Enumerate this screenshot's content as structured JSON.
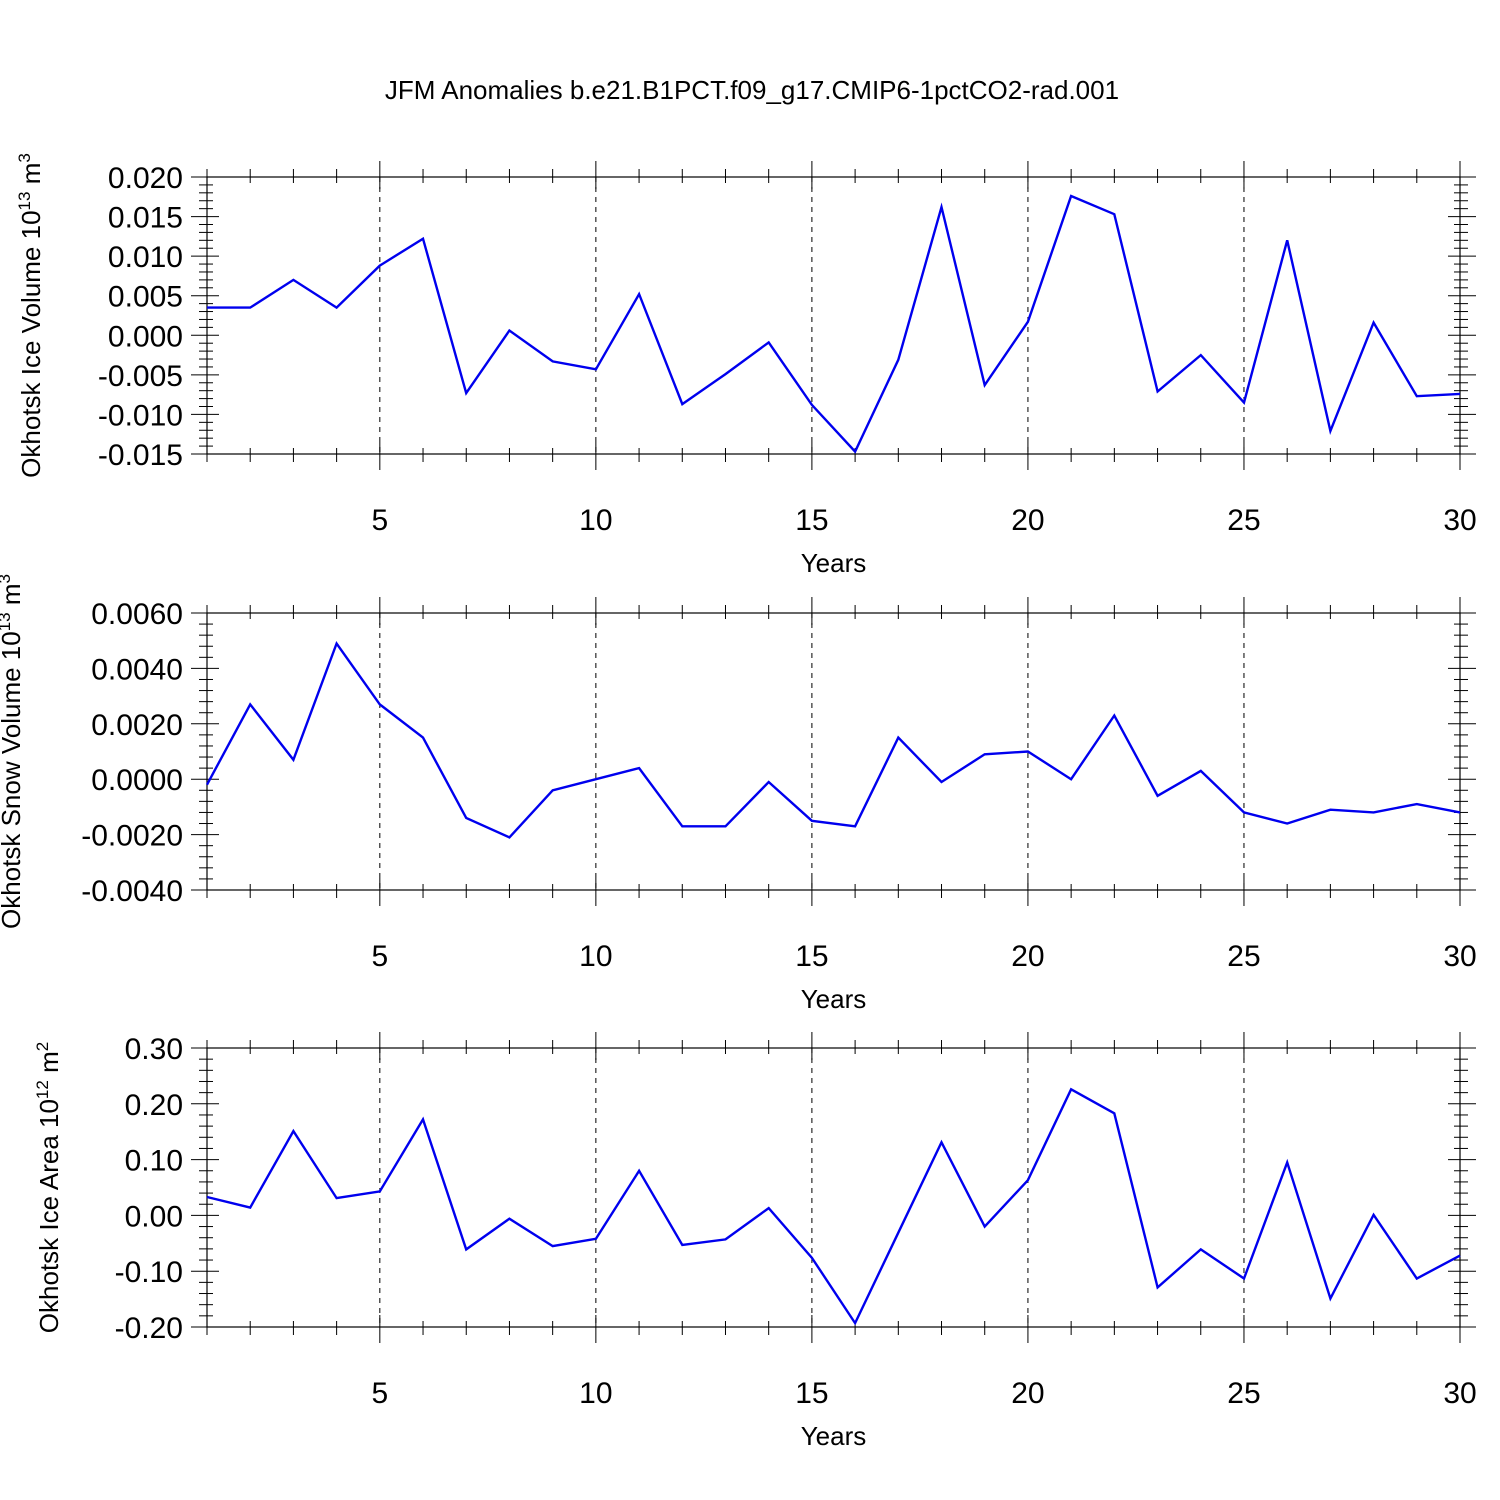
{
  "figure": {
    "title": "JFM Anomalies b.e21.B1PCT.f09_g17.CMIP6-1pctCO2-rad.001"
  },
  "chart_data": [
    {
      "type": "line",
      "title": "JFM Anomalies b.e21.B1PCT.f09_g17.CMIP6-1pctCO2-rad.001",
      "xlabel": "Years",
      "ylabel": "Okhotsk Ice Volume 10",
      "ylabel_exponent": "13",
      "ylabel_unit": " m",
      "ylabel_unit_exponent": "3",
      "xlim": [
        1,
        30
      ],
      "ylim": [
        -0.015,
        0.02
      ],
      "x_ticks": [
        5,
        10,
        15,
        20,
        25,
        30
      ],
      "x_tick_labels": [
        "5",
        "10",
        "15",
        "20",
        "25",
        "30"
      ],
      "y_ticks": [
        -0.015,
        -0.01,
        -0.005,
        0.0,
        0.005,
        0.01,
        0.015,
        0.02
      ],
      "y_tick_labels": [
        "-0.015",
        "-0.010",
        "-0.005",
        "0.000",
        "0.005",
        "0.010",
        "0.015",
        "0.020"
      ],
      "line_color": "#0000ee",
      "grid": "vertical dashed at major x ticks",
      "x": [
        1,
        2,
        3,
        4,
        5,
        6,
        7,
        8,
        9,
        10,
        11,
        12,
        13,
        14,
        15,
        16,
        17,
        18,
        19,
        20,
        21,
        22,
        23,
        24,
        25,
        26,
        27,
        28,
        29,
        30
      ],
      "values": [
        0.0035,
        0.0035,
        0.007,
        0.0035,
        0.0088,
        0.0122,
        -0.0073,
        0.0006,
        -0.0033,
        -0.0043,
        0.0052,
        -0.0087,
        -0.0049,
        -0.0009,
        -0.0088,
        -0.0147,
        -0.0031,
        0.0162,
        -0.0063,
        0.0017,
        0.0176,
        0.0153,
        -0.0071,
        -0.0025,
        -0.0085,
        0.012,
        -0.0121,
        0.0016,
        -0.0077,
        -0.0074
      ]
    },
    {
      "type": "line",
      "xlabel": "Years",
      "ylabel": "Okhotsk Snow Volume 10",
      "ylabel_exponent": "13",
      "ylabel_unit": " m",
      "ylabel_unit_exponent": "3",
      "xlim": [
        1,
        30
      ],
      "ylim": [
        -0.004,
        0.006
      ],
      "x_ticks": [
        5,
        10,
        15,
        20,
        25,
        30
      ],
      "x_tick_labels": [
        "5",
        "10",
        "15",
        "20",
        "25",
        "30"
      ],
      "y_ticks": [
        -0.004,
        -0.002,
        0.0,
        0.002,
        0.004,
        0.006
      ],
      "y_tick_labels": [
        "-0.0040",
        "-0.0020",
        "0.0000",
        "0.0020",
        "0.0040",
        "0.0060"
      ],
      "line_color": "#0000ee",
      "grid": "vertical dashed at major x ticks",
      "x": [
        1,
        2,
        3,
        4,
        5,
        6,
        7,
        8,
        9,
        10,
        11,
        12,
        13,
        14,
        15,
        16,
        17,
        18,
        19,
        20,
        21,
        22,
        23,
        24,
        25,
        26,
        27,
        28,
        29,
        30
      ],
      "values": [
        -0.0002,
        0.0027,
        0.0007,
        0.0049,
        0.0027,
        0.0015,
        -0.0014,
        -0.0021,
        -0.0004,
        0.0,
        0.0004,
        -0.0017,
        -0.0017,
        -0.0001,
        -0.0015,
        -0.0017,
        0.0015,
        -0.0001,
        0.0009,
        0.001,
        0.0,
        0.0023,
        -0.0006,
        0.0003,
        -0.0012,
        -0.0016,
        -0.0011,
        -0.0012,
        -0.0009,
        -0.0012
      ]
    },
    {
      "type": "line",
      "xlabel": "Years",
      "ylabel": "Okhotsk Ice Area 10",
      "ylabel_exponent": "12",
      "ylabel_unit": " m",
      "ylabel_unit_exponent": "2",
      "xlim": [
        1,
        30
      ],
      "ylim": [
        -0.2,
        0.3
      ],
      "x_ticks": [
        5,
        10,
        15,
        20,
        25,
        30
      ],
      "x_tick_labels": [
        "5",
        "10",
        "15",
        "20",
        "25",
        "30"
      ],
      "y_ticks": [
        -0.2,
        -0.1,
        0.0,
        0.1,
        0.2,
        0.3
      ],
      "y_tick_labels": [
        "-0.20",
        "-0.10",
        "0.00",
        "0.10",
        "0.20",
        "0.30"
      ],
      "line_color": "#0000ee",
      "grid": "vertical dashed at major x ticks",
      "x": [
        1,
        2,
        3,
        4,
        5,
        6,
        7,
        8,
        9,
        10,
        11,
        12,
        13,
        14,
        15,
        16,
        17,
        18,
        19,
        20,
        21,
        22,
        23,
        24,
        25,
        26,
        27,
        28,
        29,
        30
      ],
      "values": [
        0.033,
        0.014,
        0.151,
        0.031,
        0.043,
        0.172,
        -0.061,
        -0.006,
        -0.055,
        -0.042,
        0.08,
        -0.053,
        -0.043,
        0.013,
        -0.076,
        -0.193,
        -0.031,
        0.131,
        -0.02,
        0.063,
        0.226,
        0.183,
        -0.129,
        -0.061,
        -0.113,
        0.095,
        -0.149,
        0.001,
        -0.113,
        -0.072
      ]
    }
  ]
}
